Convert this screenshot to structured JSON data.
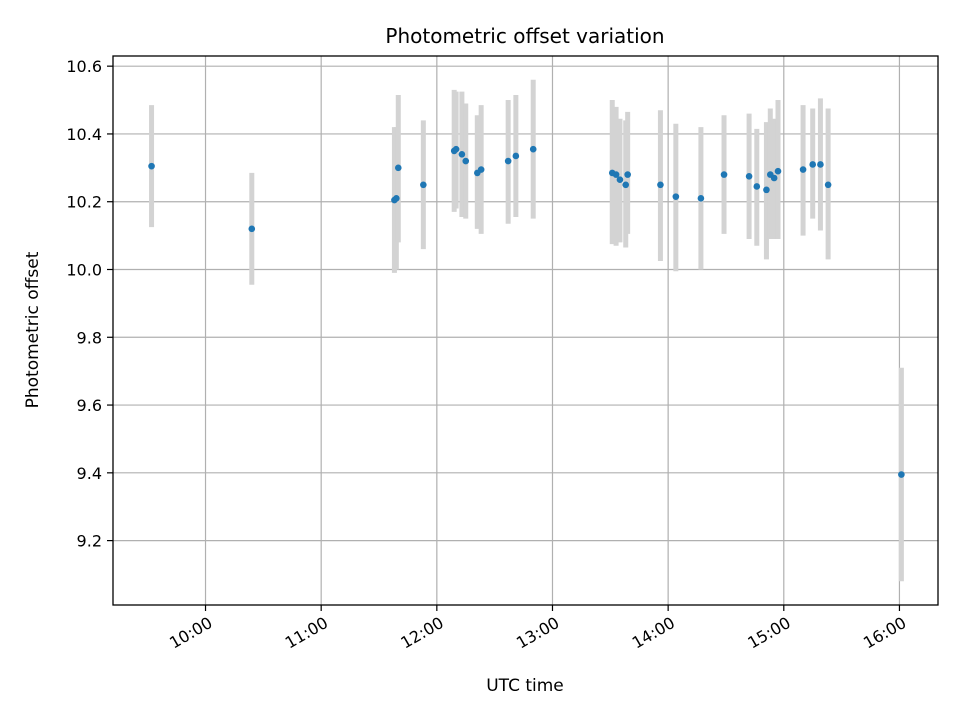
{
  "chart_data": {
    "type": "scatter",
    "title": "Photometric offset variation",
    "xlabel": "UTC time",
    "ylabel": "Photometric offset",
    "x_axis": "time",
    "xlim": [
      "09:12",
      "16:20"
    ],
    "ylim": [
      9.01,
      10.63
    ],
    "x_ticks": [
      "10:00",
      "11:00",
      "12:00",
      "13:00",
      "14:00",
      "15:00",
      "16:00"
    ],
    "y_ticks": [
      "9.2",
      "9.4",
      "9.6",
      "9.8",
      "10.0",
      "10.2",
      "10.4",
      "10.6"
    ],
    "grid": true,
    "colors": {
      "points": "#1f77b4",
      "errorbars": "#d3d3d3"
    },
    "points": [
      {
        "x": "09:32",
        "y": 10.305,
        "ylow": 10.125,
        "yhigh": 10.485
      },
      {
        "x": "10:24",
        "y": 10.12,
        "ylow": 9.955,
        "yhigh": 10.285
      },
      {
        "x": "11:38",
        "y": 10.205,
        "ylow": 9.99,
        "yhigh": 10.42
      },
      {
        "x": "11:39",
        "y": 10.21,
        "ylow": 10.0,
        "yhigh": 10.42
      },
      {
        "x": "11:40",
        "y": 10.3,
        "ylow": 10.08,
        "yhigh": 10.515
      },
      {
        "x": "11:53",
        "y": 10.25,
        "ylow": 10.06,
        "yhigh": 10.44
      },
      {
        "x": "12:09",
        "y": 10.35,
        "ylow": 10.17,
        "yhigh": 10.53
      },
      {
        "x": "12:10",
        "y": 10.355,
        "ylow": 10.18,
        "yhigh": 10.525
      },
      {
        "x": "12:13",
        "y": 10.34,
        "ylow": 10.155,
        "yhigh": 10.525
      },
      {
        "x": "12:15",
        "y": 10.32,
        "ylow": 10.15,
        "yhigh": 10.49
      },
      {
        "x": "12:21",
        "y": 10.285,
        "ylow": 10.12,
        "yhigh": 10.455
      },
      {
        "x": "12:23",
        "y": 10.295,
        "ylow": 10.105,
        "yhigh": 10.485
      },
      {
        "x": "12:37",
        "y": 10.32,
        "ylow": 10.135,
        "yhigh": 10.5
      },
      {
        "x": "12:41",
        "y": 10.335,
        "ylow": 10.155,
        "yhigh": 10.515
      },
      {
        "x": "12:50",
        "y": 10.355,
        "ylow": 10.15,
        "yhigh": 10.56
      },
      {
        "x": "13:31",
        "y": 10.285,
        "ylow": 10.075,
        "yhigh": 10.5
      },
      {
        "x": "13:33",
        "y": 10.28,
        "ylow": 10.07,
        "yhigh": 10.48
      },
      {
        "x": "13:35",
        "y": 10.265,
        "ylow": 10.08,
        "yhigh": 10.445
      },
      {
        "x": "13:38",
        "y": 10.25,
        "ylow": 10.065,
        "yhigh": 10.44
      },
      {
        "x": "13:39",
        "y": 10.28,
        "ylow": 10.105,
        "yhigh": 10.465
      },
      {
        "x": "13:56",
        "y": 10.25,
        "ylow": 10.025,
        "yhigh": 10.47
      },
      {
        "x": "14:04",
        "y": 10.215,
        "ylow": 9.995,
        "yhigh": 10.43
      },
      {
        "x": "14:17",
        "y": 10.21,
        "ylow": 10.0,
        "yhigh": 10.42
      },
      {
        "x": "14:29",
        "y": 10.28,
        "ylow": 10.105,
        "yhigh": 10.455
      },
      {
        "x": "14:42",
        "y": 10.275,
        "ylow": 10.09,
        "yhigh": 10.46
      },
      {
        "x": "14:46",
        "y": 10.245,
        "ylow": 10.07,
        "yhigh": 10.415
      },
      {
        "x": "14:51",
        "y": 10.235,
        "ylow": 10.03,
        "yhigh": 10.435
      },
      {
        "x": "14:53",
        "y": 10.28,
        "ylow": 10.09,
        "yhigh": 10.475
      },
      {
        "x": "14:55",
        "y": 10.27,
        "ylow": 10.09,
        "yhigh": 10.445
      },
      {
        "x": "14:57",
        "y": 10.29,
        "ylow": 10.09,
        "yhigh": 10.5
      },
      {
        "x": "15:10",
        "y": 10.295,
        "ylow": 10.1,
        "yhigh": 10.485
      },
      {
        "x": "15:15",
        "y": 10.31,
        "ylow": 10.15,
        "yhigh": 10.475
      },
      {
        "x": "15:19",
        "y": 10.31,
        "ylow": 10.115,
        "yhigh": 10.505
      },
      {
        "x": "15:23",
        "y": 10.25,
        "ylow": 10.03,
        "yhigh": 10.475
      },
      {
        "x": "16:01",
        "y": 9.395,
        "ylow": 9.08,
        "yhigh": 9.71
      }
    ]
  }
}
